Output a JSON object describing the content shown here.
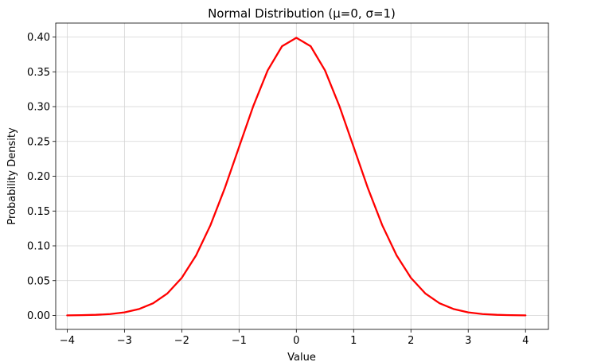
{
  "chart_data": {
    "type": "line",
    "title": "Normal Distribution (μ=0, σ=1)",
    "xlabel": "Value",
    "ylabel": "Probability Density",
    "xlim": [
      -4.2,
      4.4
    ],
    "ylim": [
      -0.02,
      0.42
    ],
    "x_ticks": [
      -4,
      -3,
      -2,
      -1,
      0,
      1,
      2,
      3,
      4
    ],
    "x_tick_labels": [
      "−4",
      "−3",
      "−2",
      "−1",
      "0",
      "1",
      "2",
      "3",
      "4"
    ],
    "y_ticks": [
      0.0,
      0.05,
      0.1,
      0.15,
      0.2,
      0.25,
      0.3,
      0.35,
      0.4
    ],
    "y_tick_labels": [
      "0.00",
      "0.05",
      "0.10",
      "0.15",
      "0.20",
      "0.25",
      "0.30",
      "0.35",
      "0.40"
    ],
    "grid": true,
    "series": [
      {
        "color": "#ff0000",
        "x": [
          -4.0,
          -3.75,
          -3.5,
          -3.25,
          -3.0,
          -2.75,
          -2.5,
          -2.25,
          -2.0,
          -1.75,
          -1.5,
          -1.25,
          -1.0,
          -0.75,
          -0.5,
          -0.25,
          0.0,
          0.25,
          0.5,
          0.75,
          1.0,
          1.25,
          1.5,
          1.75,
          2.0,
          2.25,
          2.5,
          2.75,
          3.0,
          3.25,
          3.5,
          3.75,
          4.0
        ],
        "y": [
          0.0001,
          0.0004,
          0.0009,
          0.002,
          0.0044,
          0.0091,
          0.0175,
          0.0317,
          0.054,
          0.0863,
          0.1295,
          0.1826,
          0.242,
          0.3011,
          0.3521,
          0.3867,
          0.3989,
          0.3867,
          0.3521,
          0.3011,
          0.242,
          0.1826,
          0.1295,
          0.0863,
          0.054,
          0.0317,
          0.0175,
          0.0091,
          0.0044,
          0.002,
          0.0009,
          0.0004,
          0.0001
        ]
      }
    ]
  }
}
